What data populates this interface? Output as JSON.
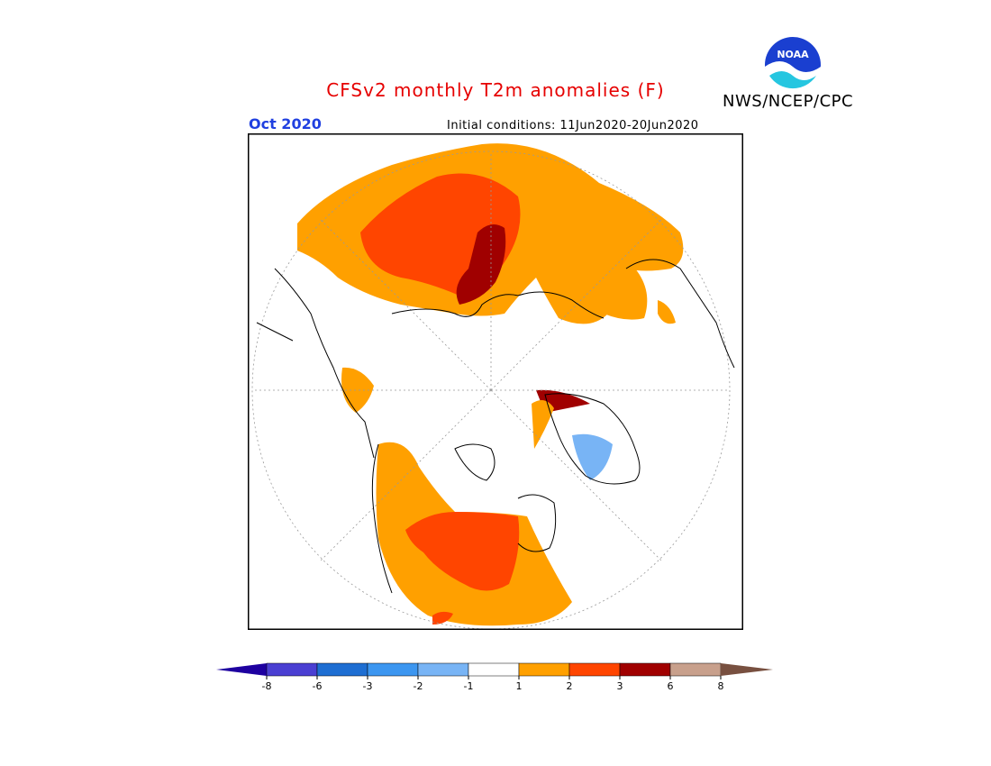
{
  "header": {
    "title": "CFSv2 monthly T2m anomalies (F)",
    "agency": "NWS/NCEP/CPC",
    "logo_text": "NOAA",
    "month": "Oct 2020",
    "initial_conditions": "Initial conditions: 11Jun2020-20Jun2020"
  },
  "map": {
    "projection": "north polar stereographic",
    "background_color": "#ffffff",
    "frame_color": "#000000"
  },
  "colorbar": {
    "ticks": [
      "-8",
      "-6",
      "-3",
      "-2",
      "-1",
      "1",
      "2",
      "3",
      "6",
      "8"
    ],
    "bins": [
      {
        "range": "< -8",
        "color": "#1e00a0"
      },
      {
        "range": "-8 to -6",
        "color": "#4a3fd2"
      },
      {
        "range": "-6 to -3",
        "color": "#1e6ed2"
      },
      {
        "range": "-3 to -2",
        "color": "#3c96f0"
      },
      {
        "range": "-2 to -1",
        "color": "#78b4f5"
      },
      {
        "range": "-1 to 1",
        "color": "#ffffff"
      },
      {
        "range": "1 to 2",
        "color": "#ffa000"
      },
      {
        "range": "2 to 3",
        "color": "#ff4500"
      },
      {
        "range": "3 to 6",
        "color": "#a00000"
      },
      {
        "range": "6 to 8",
        "color": "#c8a08c"
      },
      {
        "range": "> 8",
        "color": "#785040"
      }
    ]
  }
}
